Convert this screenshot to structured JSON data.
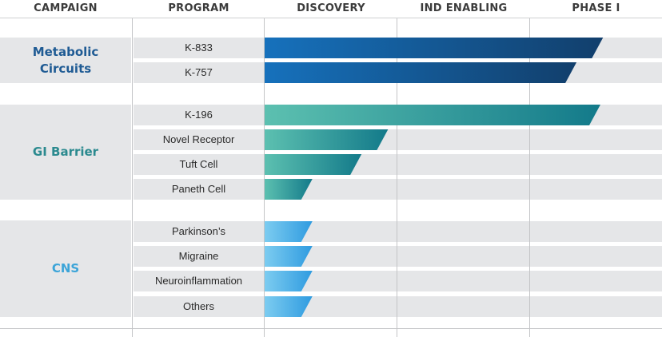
{
  "headers": {
    "campaign": "CAMPAIGN",
    "program": "PROGRAM",
    "discovery": "DISCOVERY",
    "ind_enabling": "IND ENABLING",
    "phase1": "PHASE I"
  },
  "colors": {
    "metabolic": "#1f5b94",
    "gi_barrier": "#2b8a8f",
    "cns": "#3ba4d8",
    "row_bg": "#e5e6e8"
  },
  "chart_data": {
    "type": "bar",
    "title": "",
    "stages": [
      "DISCOVERY",
      "IND ENABLING",
      "PHASE I"
    ],
    "value_unit": "stage progress (0-3, one unit per stage)",
    "groups": [
      {
        "name": "Metabolic Circuits",
        "color_start": "#1671bc",
        "color_end": "#123f6c",
        "programs": [
          {
            "name": "K-833",
            "progress": 2.55
          },
          {
            "name": "K-757",
            "progress": 2.35
          }
        ]
      },
      {
        "name": "GI Barrier",
        "color_start": "#5cc0b0",
        "color_end": "#137a8a",
        "programs": [
          {
            "name": "K-196",
            "progress": 2.53
          },
          {
            "name": "Novel Receptor",
            "progress": 0.93
          },
          {
            "name": "Tuft Cell",
            "progress": 0.73
          },
          {
            "name": "Paneth Cell",
            "progress": 0.36
          }
        ]
      },
      {
        "name": "CNS",
        "color_start": "#7cccf0",
        "color_end": "#2f9be0",
        "programs": [
          {
            "name": "Parkinson’s",
            "progress": 0.36
          },
          {
            "name": "Migraine",
            "progress": 0.36
          },
          {
            "name": "Neuroinflammation",
            "progress": 0.36
          },
          {
            "name": "Others",
            "progress": 0.36
          }
        ]
      }
    ]
  }
}
